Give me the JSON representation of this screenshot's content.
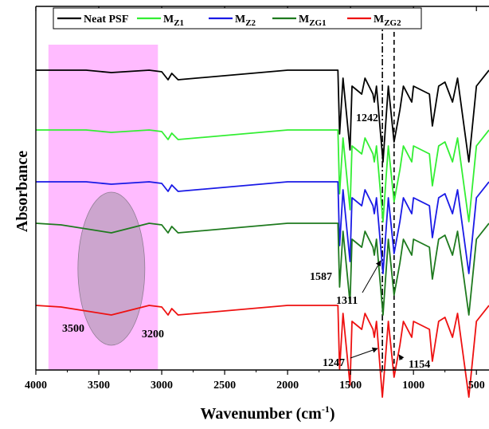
{
  "chart_data": {
    "type": "line",
    "xlabel": "Wavenumber (cm",
    "xlabel_sup": "-1",
    "xlabel_close": ")",
    "ylabel": "Absorbance",
    "xlim": [
      4000,
      400
    ],
    "x_reversed": true,
    "x_ticks": [
      4000,
      3500,
      3000,
      2500,
      2000,
      1500,
      1000,
      500
    ],
    "y_ticks_shown": false,
    "grid": false,
    "legend_position": "top",
    "series": [
      {
        "name": "Neat PSF",
        "name_main": "Neat PSF",
        "name_sub": "",
        "color": "#000000",
        "offset": 4,
        "points": [
          [
            4000,
            0
          ],
          [
            3600,
            0
          ],
          [
            3400,
            -0.03
          ],
          [
            3100,
            0
          ],
          [
            3000,
            -0.02
          ],
          [
            2950,
            -0.12
          ],
          [
            2920,
            -0.04
          ],
          [
            2870,
            -0.12
          ],
          [
            2000,
            0
          ],
          [
            1600,
            0
          ],
          [
            1587,
            -0.8
          ],
          [
            1560,
            -0.1
          ],
          [
            1504,
            -1.0
          ],
          [
            1488,
            -0.2
          ],
          [
            1411,
            -0.3
          ],
          [
            1385,
            -0.1
          ],
          [
            1322,
            -0.3
          ],
          [
            1311,
            -0.4
          ],
          [
            1294,
            -0.2
          ],
          [
            1242,
            -1.15
          ],
          [
            1200,
            -0.2
          ],
          [
            1154,
            -0.9
          ],
          [
            1108,
            -0.5
          ],
          [
            1080,
            -0.2
          ],
          [
            1014,
            -0.4
          ],
          [
            1000,
            -0.2
          ],
          [
            873,
            -0.3
          ],
          [
            850,
            -0.7
          ],
          [
            800,
            -0.2
          ],
          [
            750,
            -0.15
          ],
          [
            690,
            -0.4
          ],
          [
            650,
            -0.1
          ],
          [
            560,
            -1.15
          ],
          [
            500,
            -0.2
          ],
          [
            400,
            0
          ]
        ]
      },
      {
        "name": "MZ1",
        "name_main": "M",
        "name_sub": "Z1",
        "color": "#33ee33",
        "offset": 3,
        "points": [
          [
            4000,
            0
          ],
          [
            3600,
            0
          ],
          [
            3400,
            -0.03
          ],
          [
            3100,
            0
          ],
          [
            3000,
            -0.02
          ],
          [
            2950,
            -0.12
          ],
          [
            2920,
            -0.04
          ],
          [
            2870,
            -0.12
          ],
          [
            2000,
            0
          ],
          [
            1600,
            0
          ],
          [
            1587,
            -0.8
          ],
          [
            1560,
            -0.1
          ],
          [
            1504,
            -1.0
          ],
          [
            1488,
            -0.2
          ],
          [
            1411,
            -0.3
          ],
          [
            1385,
            -0.1
          ],
          [
            1322,
            -0.3
          ],
          [
            1311,
            -0.4
          ],
          [
            1294,
            -0.2
          ],
          [
            1242,
            -1.15
          ],
          [
            1200,
            -0.2
          ],
          [
            1154,
            -0.9
          ],
          [
            1108,
            -0.5
          ],
          [
            1080,
            -0.2
          ],
          [
            1014,
            -0.4
          ],
          [
            1000,
            -0.2
          ],
          [
            873,
            -0.3
          ],
          [
            850,
            -0.7
          ],
          [
            800,
            -0.2
          ],
          [
            750,
            -0.15
          ],
          [
            690,
            -0.4
          ],
          [
            650,
            -0.1
          ],
          [
            560,
            -1.15
          ],
          [
            500,
            -0.2
          ],
          [
            400,
            0
          ]
        ]
      },
      {
        "name": "MZ2",
        "name_main": "M",
        "name_sub": "Z2",
        "color": "#1a1ae6",
        "offset": 2,
        "points": [
          [
            4000,
            0
          ],
          [
            3600,
            0
          ],
          [
            3400,
            -0.03
          ],
          [
            3100,
            0
          ],
          [
            3000,
            -0.02
          ],
          [
            2950,
            -0.12
          ],
          [
            2920,
            -0.04
          ],
          [
            2870,
            -0.12
          ],
          [
            2000,
            0
          ],
          [
            1600,
            0
          ],
          [
            1587,
            -0.8
          ],
          [
            1560,
            -0.1
          ],
          [
            1504,
            -1.0
          ],
          [
            1488,
            -0.2
          ],
          [
            1411,
            -0.3
          ],
          [
            1385,
            -0.1
          ],
          [
            1322,
            -0.3
          ],
          [
            1311,
            -0.4
          ],
          [
            1294,
            -0.2
          ],
          [
            1242,
            -1.15
          ],
          [
            1200,
            -0.2
          ],
          [
            1154,
            -0.9
          ],
          [
            1108,
            -0.5
          ],
          [
            1080,
            -0.2
          ],
          [
            1014,
            -0.4
          ],
          [
            1000,
            -0.2
          ],
          [
            873,
            -0.3
          ],
          [
            850,
            -0.7
          ],
          [
            800,
            -0.2
          ],
          [
            750,
            -0.15
          ],
          [
            690,
            -0.4
          ],
          [
            650,
            -0.1
          ],
          [
            560,
            -1.15
          ],
          [
            500,
            -0.2
          ],
          [
            400,
            0
          ]
        ]
      },
      {
        "name": "MZG1",
        "name_main": "M",
        "name_sub": "ZG1",
        "color": "#1e7a1e",
        "offset": 1,
        "points": [
          [
            4000,
            0
          ],
          [
            3800,
            -0.02
          ],
          [
            3400,
            -0.12
          ],
          [
            3100,
            0
          ],
          [
            3000,
            -0.02
          ],
          [
            2950,
            -0.12
          ],
          [
            2920,
            -0.04
          ],
          [
            2870,
            -0.12
          ],
          [
            2000,
            0
          ],
          [
            1600,
            0
          ],
          [
            1587,
            -0.8
          ],
          [
            1560,
            -0.1
          ],
          [
            1504,
            -1.0
          ],
          [
            1488,
            -0.2
          ],
          [
            1411,
            -0.3
          ],
          [
            1385,
            -0.1
          ],
          [
            1322,
            -0.3
          ],
          [
            1311,
            -0.4
          ],
          [
            1294,
            -0.2
          ],
          [
            1242,
            -1.15
          ],
          [
            1200,
            -0.2
          ],
          [
            1154,
            -0.9
          ],
          [
            1108,
            -0.5
          ],
          [
            1080,
            -0.2
          ],
          [
            1014,
            -0.4
          ],
          [
            1000,
            -0.2
          ],
          [
            873,
            -0.3
          ],
          [
            850,
            -0.7
          ],
          [
            800,
            -0.2
          ],
          [
            750,
            -0.15
          ],
          [
            690,
            -0.4
          ],
          [
            650,
            -0.1
          ],
          [
            560,
            -1.15
          ],
          [
            500,
            -0.2
          ],
          [
            400,
            0
          ]
        ]
      },
      {
        "name": "MZG2",
        "name_main": "M",
        "name_sub": "ZG2",
        "color": "#ee1111",
        "offset": 0,
        "points": [
          [
            4000,
            0
          ],
          [
            3800,
            -0.02
          ],
          [
            3400,
            -0.12
          ],
          [
            3100,
            0
          ],
          [
            3000,
            -0.02
          ],
          [
            2950,
            -0.12
          ],
          [
            2920,
            -0.04
          ],
          [
            2870,
            -0.12
          ],
          [
            2000,
            0
          ],
          [
            1600,
            0
          ],
          [
            1587,
            -0.8
          ],
          [
            1560,
            -0.1
          ],
          [
            1504,
            -1.0
          ],
          [
            1488,
            -0.2
          ],
          [
            1411,
            -0.3
          ],
          [
            1385,
            -0.1
          ],
          [
            1322,
            -0.3
          ],
          [
            1311,
            -0.4
          ],
          [
            1294,
            -0.2
          ],
          [
            1247,
            -1.15
          ],
          [
            1200,
            -0.2
          ],
          [
            1154,
            -0.9
          ],
          [
            1108,
            -0.5
          ],
          [
            1080,
            -0.2
          ],
          [
            1014,
            -0.4
          ],
          [
            1000,
            -0.2
          ],
          [
            873,
            -0.3
          ],
          [
            850,
            -0.7
          ],
          [
            800,
            -0.2
          ],
          [
            750,
            -0.15
          ],
          [
            690,
            -0.4
          ],
          [
            650,
            -0.1
          ],
          [
            560,
            -1.15
          ],
          [
            500,
            -0.2
          ],
          [
            400,
            0
          ]
        ]
      }
    ],
    "highlight_band": {
      "x": [
        3900,
        3030
      ],
      "color": "#ffbbff"
    },
    "ellipse_region": {
      "center_x": 3400,
      "color": "#b09ab4"
    },
    "reference_lines": [
      1247,
      1154
    ],
    "annotations": [
      "3500",
      "3200",
      "1242",
      "1587",
      "1311",
      "1247",
      "1154"
    ]
  }
}
